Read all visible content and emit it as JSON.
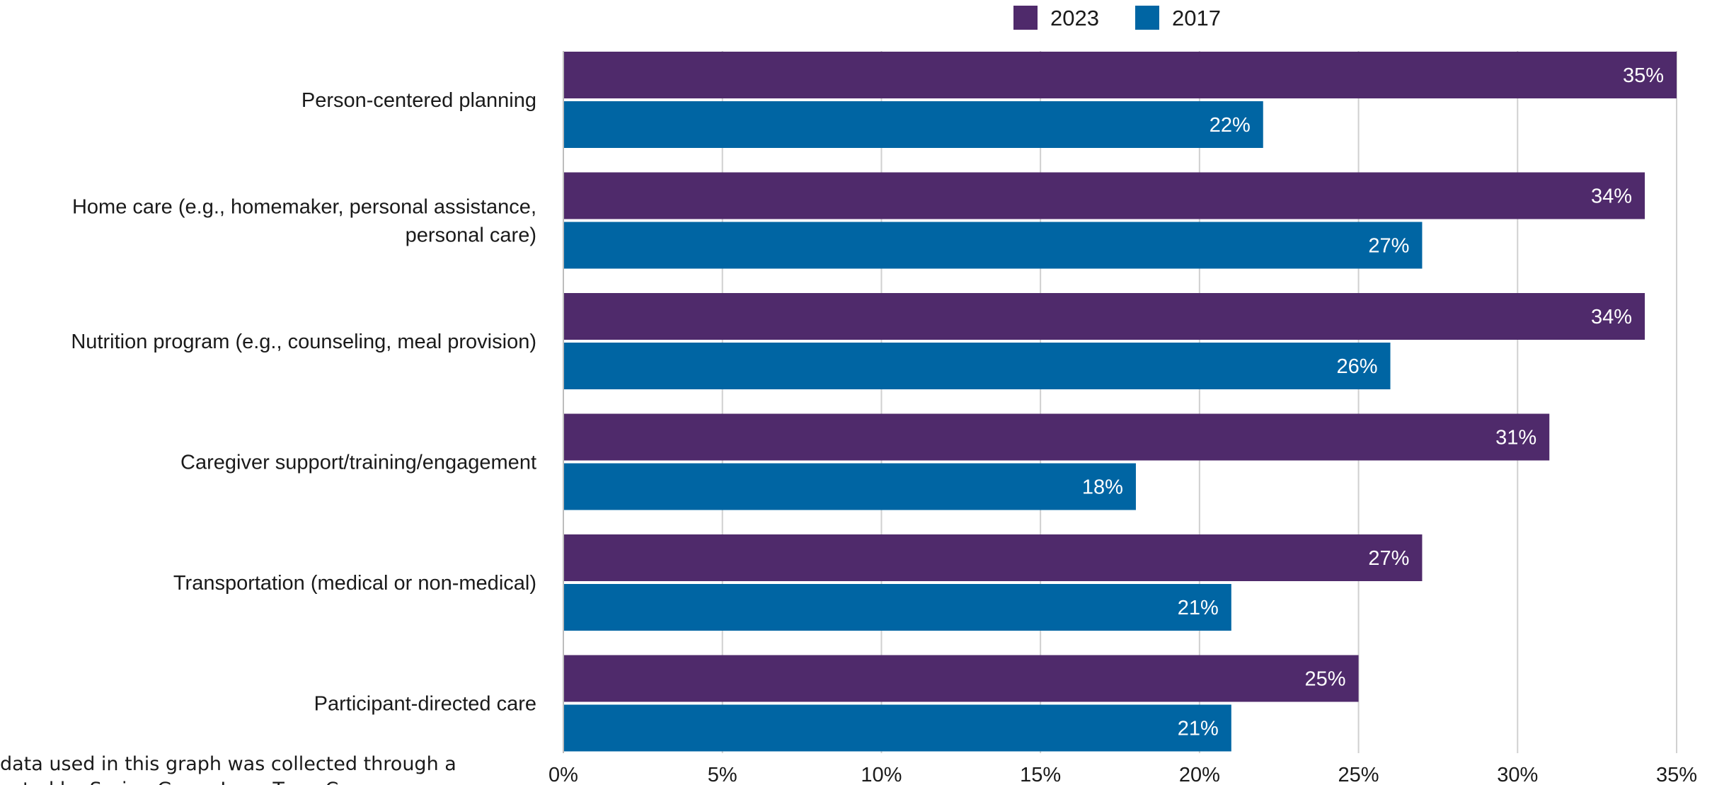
{
  "chart_data": {
    "type": "bar",
    "orientation": "horizontal",
    "categories": [
      "Person-centered planning",
      "Home care (e.g., homemaker, personal assistance,\npersonal care)",
      "Nutrition program (e.g., counseling, meal provision)",
      "Caregiver support/training/engagement",
      "Transportation (medical or non-medical)",
      "Participant-directed care"
    ],
    "series": [
      {
        "name": "2023",
        "color": "#4f2a6b",
        "values": [
          35,
          34,
          34,
          31,
          27,
          25
        ]
      },
      {
        "name": "2017",
        "color": "#0065a3",
        "values": [
          22,
          27,
          26,
          18,
          21,
          21
        ]
      }
    ],
    "data_labels": {
      "2023": [
        "35%",
        "34%",
        "34%",
        "31%",
        "27%",
        "25%"
      ],
      "2017": [
        "22%",
        "27%",
        "26%",
        "18%",
        "21%",
        "21%"
      ]
    },
    "xlim": [
      0,
      35
    ],
    "xticks": [
      0,
      5,
      10,
      15,
      20,
      25,
      30,
      35
    ],
    "xtick_labels": [
      "0%",
      "5%",
      "10%",
      "15%",
      "20%",
      "25%",
      "30%",
      "35%"
    ],
    "grid": "vertical",
    "legend_position": "top-center"
  },
  "footnote": " data used in this graph was collected through a\n           ucted by Spring Grove Long Term Care"
}
